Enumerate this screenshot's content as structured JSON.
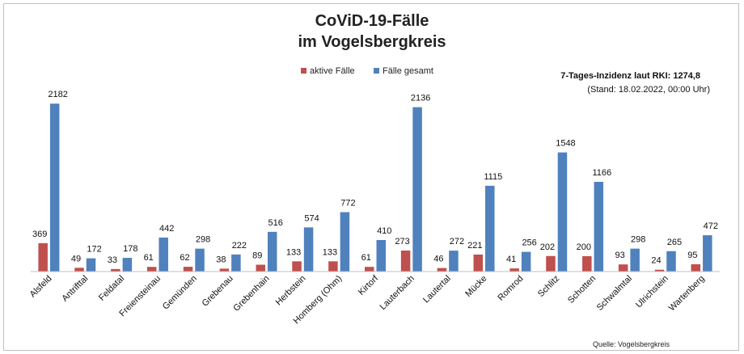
{
  "chart_data": {
    "type": "bar",
    "title": "CoViD-19-Fälle",
    "subtitle": "im Vogelsbergkreis",
    "annotation": {
      "incidence": "7-Tages-Inzidenz laut RKI: 1274,8",
      "date": "(Stand: 18.02.2022, 00:00 Uhr)"
    },
    "source": "Quelle: Vogelsbergkreis",
    "legend_position": "top-center",
    "grid": false,
    "ylim": [
      0,
      2300
    ],
    "categories": [
      "Alsfeld",
      "Antrifttal",
      "Feldatal",
      "Freiensteinau",
      "Gemünden",
      "Grebenau",
      "Grebenhain",
      "Herbstein",
      "Homberg (Ohm)",
      "Kirtorf",
      "Lauterbach",
      "Lautertal",
      "Mücke",
      "Romrod",
      "Schlitz",
      "Schotten",
      "Schwalmtal",
      "Ulrichstein",
      "Wartenberg"
    ],
    "series": [
      {
        "name": "aktive Fälle",
        "color": "#c0504d",
        "values": [
          369,
          49,
          33,
          61,
          62,
          38,
          89,
          133,
          133,
          61,
          273,
          46,
          221,
          41,
          202,
          200,
          93,
          24,
          95
        ]
      },
      {
        "name": "Fälle gesamt",
        "color": "#4f81bd",
        "values": [
          2182,
          172,
          178,
          442,
          298,
          222,
          516,
          574,
          772,
          410,
          2136,
          272,
          1115,
          256,
          1548,
          1166,
          298,
          265,
          472
        ]
      }
    ]
  }
}
